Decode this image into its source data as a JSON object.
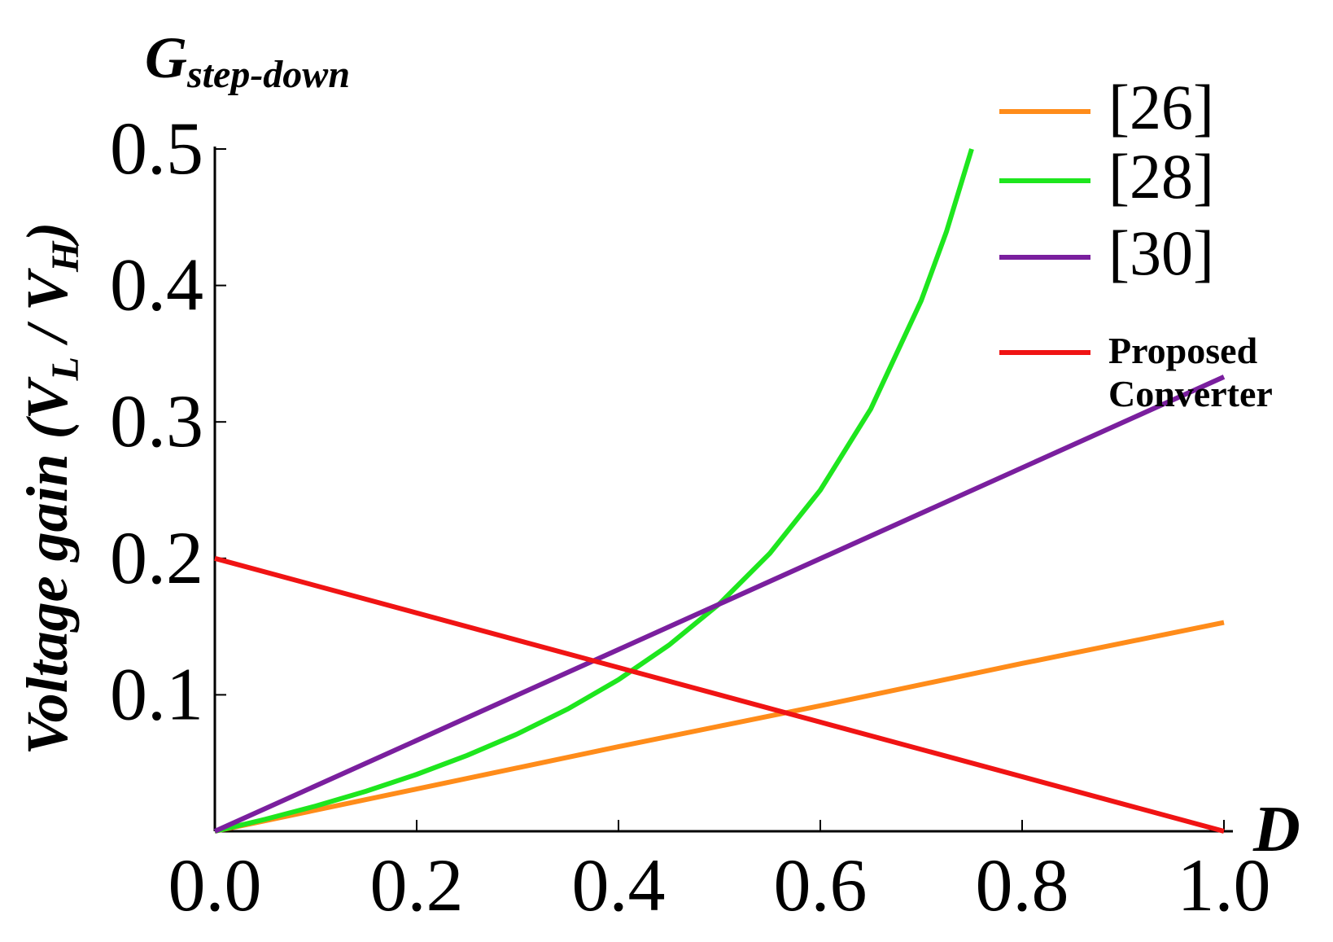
{
  "chart_data": {
    "type": "line",
    "title": [
      "G",
      "step-down"
    ],
    "y_label": [
      "Voltage gain (V",
      "L",
      " / V",
      "H",
      ")"
    ],
    "x_label": "D",
    "xlim": [
      0,
      1
    ],
    "ylim": [
      0,
      0.5
    ],
    "xticks": [
      {
        "value": 0,
        "label": "0.0"
      },
      0.2,
      0.4,
      0.6,
      0.8,
      {
        "value": 1,
        "label": "1.0"
      }
    ],
    "yticks": [
      0.1,
      0.2,
      0.3,
      0.4,
      0.5
    ],
    "series": [
      {
        "name": "[26]",
        "color": "#ff8c1a",
        "x": [
          0,
          0.2,
          0.4,
          0.6,
          0.8,
          1
        ],
        "values": [
          0,
          0.031,
          0.062,
          0.092,
          0.123,
          0.153
        ]
      },
      {
        "name": "[28]",
        "color": "#1ee61e",
        "x": [
          0,
          0.05,
          0.1,
          0.15,
          0.2,
          0.25,
          0.3,
          0.35,
          0.4,
          0.45,
          0.5,
          0.55,
          0.6,
          0.65,
          0.7,
          0.725,
          0.75
        ],
        "values": [
          0,
          0.0088,
          0.0185,
          0.0294,
          0.0417,
          0.0556,
          0.0714,
          0.0897,
          0.1111,
          0.1364,
          0.1667,
          0.2037,
          0.25,
          0.3095,
          0.3889,
          0.4394,
          0.5
        ]
      },
      {
        "name": "[30]",
        "color": "#7a1f9e",
        "x": [
          0,
          1
        ],
        "values": [
          0,
          0.333
        ]
      },
      {
        "name": "Proposed Converter",
        "color": "#f01414",
        "x": [
          0,
          1
        ],
        "values": [
          0.2,
          0
        ]
      }
    ]
  }
}
